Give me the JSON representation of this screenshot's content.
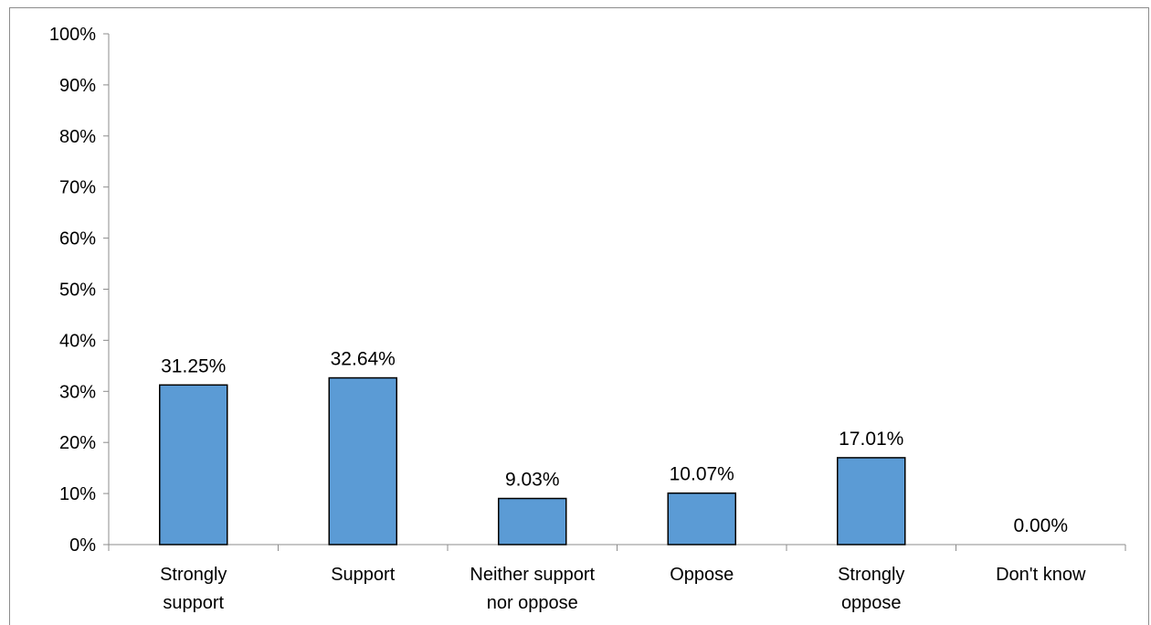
{
  "chart_data": {
    "type": "bar",
    "categories": [
      [
        "Strongly",
        "support"
      ],
      [
        "Support"
      ],
      [
        "Neither support",
        "nor oppose"
      ],
      [
        "Oppose"
      ],
      [
        "Strongly",
        "oppose"
      ],
      [
        "Don't know"
      ]
    ],
    "values": [
      31.25,
      32.64,
      9.03,
      10.07,
      17.01,
      0.0
    ],
    "data_labels": [
      "31.25%",
      "32.64%",
      "9.03%",
      "10.07%",
      "17.01%",
      "0.00%"
    ],
    "y_ticks": [
      "0%",
      "10%",
      "20%",
      "30%",
      "40%",
      "50%",
      "60%",
      "70%",
      "80%",
      "90%",
      "100%"
    ],
    "ylim": [
      0,
      100
    ],
    "grid": false,
    "legend": "none",
    "bar_color": "#5b9bd5",
    "bar_edge_color": "#000000"
  }
}
